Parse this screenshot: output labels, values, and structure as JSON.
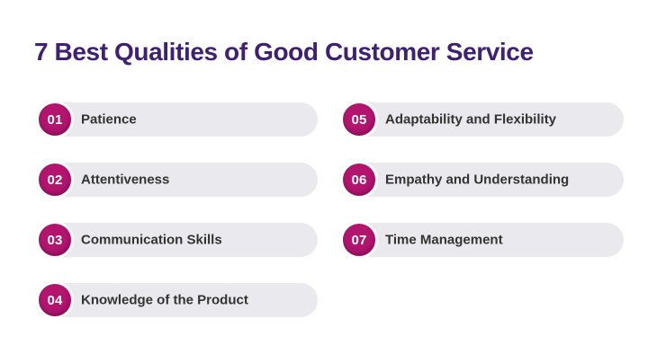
{
  "title": "7 Best Qualities of Good Customer Service",
  "items": [
    {
      "number": "01",
      "label": "Patience"
    },
    {
      "number": "02",
      "label": "Attentiveness"
    },
    {
      "number": "03",
      "label": "Communication Skills"
    },
    {
      "number": "04",
      "label": "Knowledge of the Product"
    },
    {
      "number": "05",
      "label": "Adaptability and Flexibility"
    },
    {
      "number": "06",
      "label": "Empathy and Understanding"
    },
    {
      "number": "07",
      "label": "Time Management"
    }
  ],
  "colors": {
    "title_text": "#3e2172",
    "badge_background": "#b2146e",
    "badge_text": "#ffffff",
    "pill_background": "#e9e9ee",
    "item_text": "#333333",
    "page_background": "#ffffff"
  }
}
